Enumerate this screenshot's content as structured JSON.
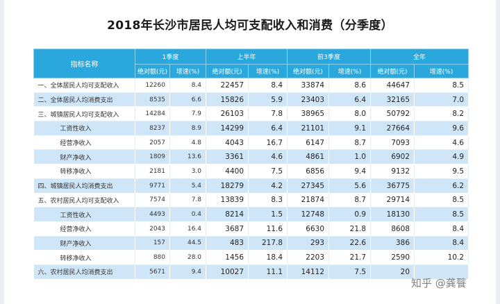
{
  "title": "2018年长沙市居民人均可支配收入和消费（分季度）",
  "header": {
    "indicator": "指标名称",
    "periods": [
      "1季度",
      "上半年",
      "前3季度",
      "全年"
    ],
    "abs_label": "绝对额(元)",
    "growth_label": "增速(%)"
  },
  "rows": [
    {
      "name": "一、全体居民人均可支配收入",
      "sub": false,
      "q1": "12260",
      "q1g": "8.4",
      "h1": "22457",
      "h1g": "8.4",
      "q3": "33874",
      "q3g": "8.6",
      "y": "44647",
      "yg": "8.5"
    },
    {
      "name": "二、全体居民人均消费支出",
      "sub": false,
      "q1": "8535",
      "q1g": "6.6",
      "h1": "15826",
      "h1g": "5.9",
      "q3": "23403",
      "q3g": "6.4",
      "y": "32165",
      "yg": "7.0"
    },
    {
      "name": "三、城镇居民人均可支配收入",
      "sub": false,
      "q1": "14284",
      "q1g": "7.9",
      "h1": "26103",
      "h1g": "7.8",
      "q3": "38965",
      "q3g": "8.0",
      "y": "50792",
      "yg": "8.2"
    },
    {
      "name": "工资性收入",
      "sub": true,
      "q1": "8237",
      "q1g": "8.9",
      "h1": "14299",
      "h1g": "6.4",
      "q3": "21101",
      "q3g": "9.1",
      "y": "27664",
      "yg": "9.6"
    },
    {
      "name": "经营净收入",
      "sub": true,
      "q1": "2057",
      "q1g": "4.8",
      "h1": "4043",
      "h1g": "16.7",
      "q3": "6147",
      "q3g": "8.7",
      "y": "7093",
      "yg": "4.6"
    },
    {
      "name": "财产净收入",
      "sub": true,
      "q1": "1809",
      "q1g": "13.6",
      "h1": "3361",
      "h1g": "4.6",
      "q3": "4861",
      "q3g": "1.0",
      "y": "6902",
      "yg": "4.9"
    },
    {
      "name": "转移净收入",
      "sub": true,
      "q1": "2181",
      "q1g": "3.0",
      "h1": "4400",
      "h1g": "7.5",
      "q3": "6856",
      "q3g": "9.4",
      "y": "9132",
      "yg": "9.5"
    },
    {
      "name": "四、城镇居民人均消费支出",
      "sub": false,
      "q1": "9771",
      "q1g": "5.4",
      "h1": "18279",
      "h1g": "4.2",
      "q3": "27345",
      "q3g": "5.6",
      "y": "36775",
      "yg": "6.2"
    },
    {
      "name": "五、农村居民人均可支配收入",
      "sub": false,
      "q1": "7574",
      "q1g": "7.8",
      "h1": "13839",
      "h1g": "8.3",
      "q3": "21874",
      "q3g": "8.7",
      "y": "29714",
      "yg": "8.5"
    },
    {
      "name": "工资性收入",
      "sub": true,
      "q1": "4493",
      "q1g": "0.4",
      "h1": "8214",
      "h1g": "1.5",
      "q3": "12748",
      "q3g": "0.9",
      "y": "18130",
      "yg": "8.5"
    },
    {
      "name": "经营净收入",
      "sub": true,
      "q1": "2043",
      "q1g": "16.4",
      "h1": "3687",
      "h1g": "11.6",
      "q3": "6630",
      "q3g": "21.8",
      "y": "8608",
      "yg": "8.4"
    },
    {
      "name": "财产净收入",
      "sub": true,
      "q1": "157",
      "q1g": "44.5",
      "h1": "483",
      "h1g": "217.8",
      "q3": "293",
      "q3g": "22.6",
      "y": "386",
      "yg": "8.4"
    },
    {
      "name": "转移净收入",
      "sub": true,
      "q1": "880",
      "q1g": "28.0",
      "h1": "1456",
      "h1g": "18.4",
      "q3": "2203",
      "q3g": "21.7",
      "y": "2590",
      "yg": "10.2"
    },
    {
      "name": "六、农村居民人均消费支出",
      "sub": false,
      "q1": "5671",
      "q1g": "9.4",
      "h1": "10027",
      "h1g": "11.1",
      "q3": "14112",
      "q3g": "7.5",
      "y": "20",
      "yg": ""
    }
  ],
  "watermark": "知乎 @龚餮"
}
